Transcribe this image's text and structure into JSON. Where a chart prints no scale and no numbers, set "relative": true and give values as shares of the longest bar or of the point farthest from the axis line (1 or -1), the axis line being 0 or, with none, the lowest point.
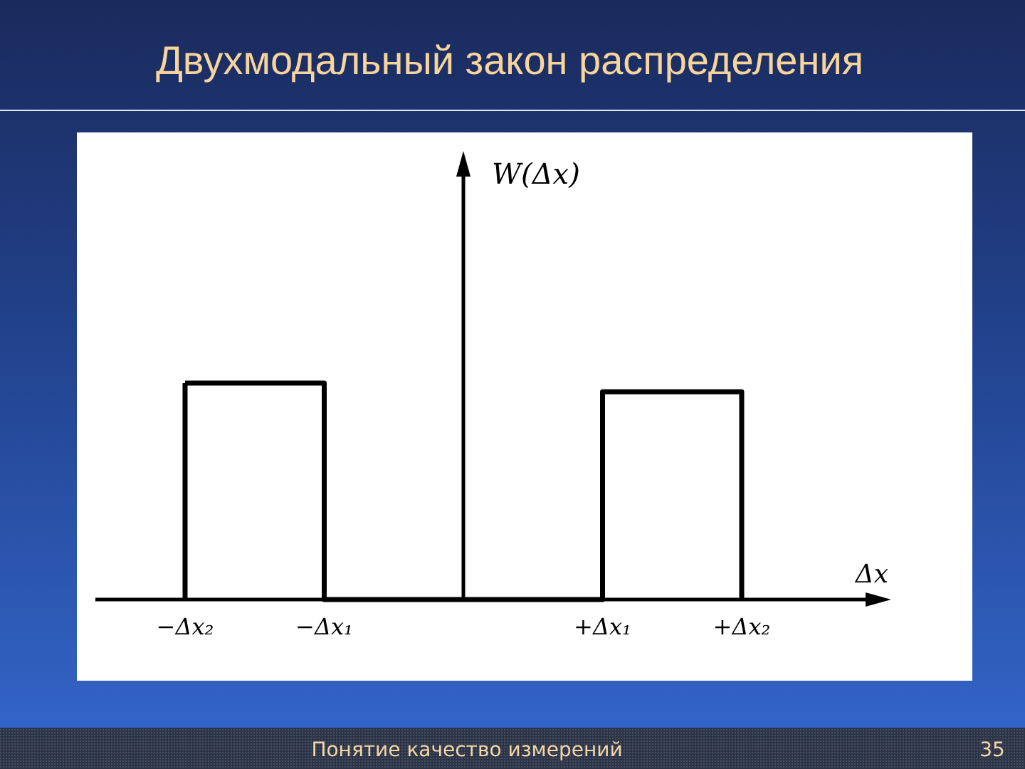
{
  "chart_data": {
    "type": "step",
    "title": "Двухмодальный закон распределения",
    "xlabel": "Δx",
    "relative": true,
    "categories": [
      "−Δx₂",
      "−Δx₁",
      null,
      "+Δx₁",
      "+Δx₂"
    ],
    "values": [
      1,
      0,
      0,
      0.96,
      0
    ],
    "color": "#000000",
    "annotations": [
      "W(Δx)",
      "Понятие качество измерений",
      "35"
    ]
  }
}
